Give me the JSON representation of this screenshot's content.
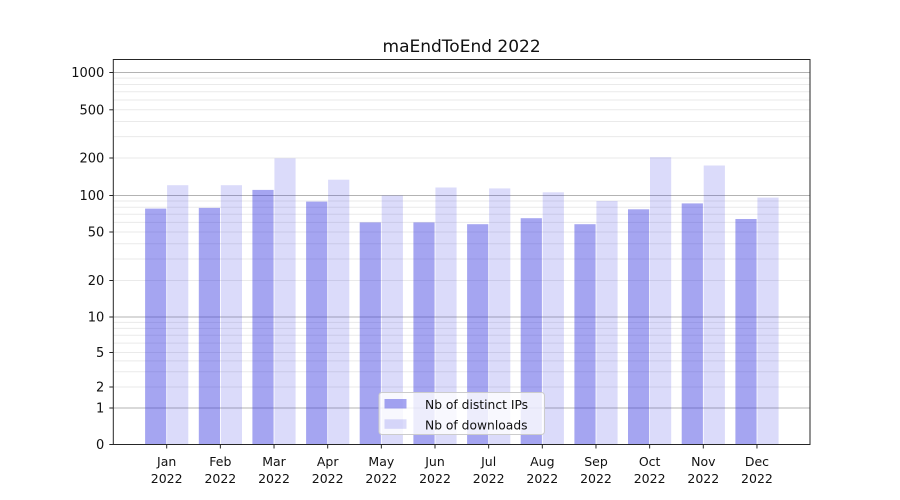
{
  "title": "maEndToEnd 2022",
  "chart_data": {
    "type": "bar",
    "title": "maEndToEnd 2022",
    "yscale": "symlog",
    "grid": true,
    "legend_position": "lower center",
    "categories": [
      "Jan 2022",
      "Feb 2022",
      "Mar 2022",
      "Apr 2022",
      "May 2022",
      "Jun 2022",
      "Jul 2022",
      "Aug 2022",
      "Sep 2022",
      "Oct 2022",
      "Nov 2022",
      "Dec 2022"
    ],
    "y_ticks": [
      0,
      1,
      2,
      5,
      10,
      20,
      50,
      100,
      200,
      500,
      1000
    ],
    "ylim": [
      0,
      1300
    ],
    "xlabel": "",
    "ylabel": "",
    "series": [
      {
        "name": "Nb of distinct IPs",
        "color_hex": "#3737E1",
        "opacity": 0.45,
        "values": [
          78,
          79,
          111,
          89,
          60,
          60,
          58,
          65,
          58,
          77,
          86,
          64
        ]
      },
      {
        "name": "Nb of downloads",
        "color_hex": "#3737E1",
        "opacity": 0.18,
        "values": [
          121,
          121,
          199,
          134,
          100,
          116,
          114,
          106,
          90,
          203,
          174,
          96
        ]
      }
    ],
    "colors": {
      "bar_dark": "#a5a5f1",
      "bar_light": "#dbdbf9",
      "grid_major": "#b3b3b3",
      "grid_minor": "#eaeaea",
      "spine": "#262626"
    }
  }
}
